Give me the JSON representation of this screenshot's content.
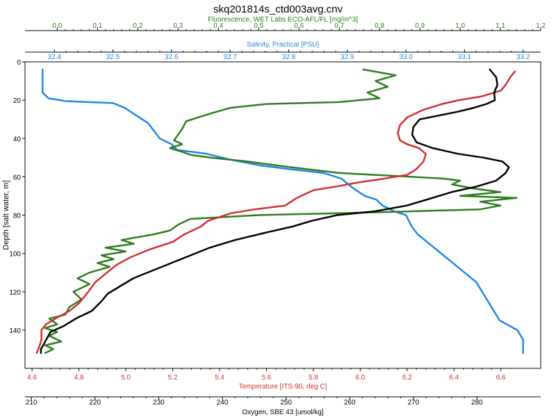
{
  "chart_data": {
    "type": "line",
    "title": "skq201814s_ctd003avg.cnv",
    "ylabel": "Depth [salt water, m]",
    "ylim": [
      0,
      160
    ],
    "yinverted": true,
    "yticks": [
      0,
      20,
      40,
      60,
      80,
      100,
      120,
      140
    ],
    "grid": false,
    "axes": [
      {
        "id": "fluorescence",
        "position": "top-outer",
        "label": "Fluorescence, WET Labs ECO-AFL/FL [mg/m^3]",
        "color": "#2e7d1f",
        "range": [
          -0.08,
          1.2
        ],
        "ticks": [
          0.0,
          0.1,
          0.2,
          0.3,
          0.4,
          0.5,
          0.6,
          0.7,
          0.8,
          0.9,
          1.0,
          1.1,
          1.2
        ],
        "tick_labels": [
          "0.0",
          "0.1",
          "0.2",
          "0.3",
          "0.4",
          "0.5",
          "0.6",
          "0.7",
          "0.8",
          "0.9",
          "1.0",
          "1.1",
          "1.2"
        ]
      },
      {
        "id": "salinity",
        "position": "top-inner",
        "label": "Salinity, Practical [PSU]",
        "color": "#1e88e5",
        "range": [
          32.35,
          33.23
        ],
        "ticks": [
          32.4,
          32.5,
          32.6,
          32.7,
          32.8,
          32.9,
          33.0,
          33.1,
          33.2
        ],
        "tick_labels": [
          "32.4",
          "32.5",
          "32.6",
          "32.7",
          "32.8",
          "32.9",
          "33.0",
          "33.1",
          "33.2"
        ]
      },
      {
        "id": "temperature",
        "position": "bottom-inner",
        "label": "Temperature [ITS-90, deg C]",
        "color": "#d32f2f",
        "range": [
          4.57,
          6.77
        ],
        "ticks": [
          4.6,
          4.8,
          5.0,
          5.2,
          5.4,
          5.6,
          5.8,
          6.0,
          6.2,
          6.4,
          6.6
        ],
        "tick_labels": [
          "4.6",
          "4.8",
          "5.0",
          "5.2",
          "5.4",
          "5.6",
          "5.8",
          "6.0",
          "6.2",
          "6.4",
          "6.6"
        ]
      },
      {
        "id": "oxygen",
        "position": "bottom-outer",
        "label": "Oxygen, SBE 43 [umol/kg]",
        "color": "#000000",
        "range": [
          209,
          290
        ],
        "ticks": [
          210,
          220,
          230,
          240,
          250,
          260,
          270,
          280
        ],
        "tick_labels": [
          "210",
          "220",
          "230",
          "240",
          "250",
          "260",
          "270",
          "280"
        ]
      }
    ],
    "series": [
      {
        "axis": "salinity",
        "color": "#1e88e5",
        "points": [
          [
            32.38,
            4
          ],
          [
            32.38,
            8
          ],
          [
            32.38,
            12
          ],
          [
            32.38,
            16
          ],
          [
            32.39,
            19
          ],
          [
            32.42,
            20.5
          ],
          [
            32.5,
            21.5
          ],
          [
            32.52,
            24
          ],
          [
            32.54,
            28
          ],
          [
            32.56,
            32
          ],
          [
            32.57,
            36
          ],
          [
            32.58,
            40
          ],
          [
            32.6,
            43
          ],
          [
            32.61,
            46
          ],
          [
            32.66,
            48
          ],
          [
            32.7,
            51
          ],
          [
            32.75,
            54
          ],
          [
            32.8,
            56
          ],
          [
            32.86,
            58
          ],
          [
            32.89,
            61
          ],
          [
            32.91,
            66
          ],
          [
            32.93,
            70
          ],
          [
            32.95,
            72
          ],
          [
            32.96,
            75
          ],
          [
            32.98,
            78
          ],
          [
            33.0,
            80
          ],
          [
            33.01,
            86
          ],
          [
            33.02,
            90
          ],
          [
            33.04,
            95
          ],
          [
            33.06,
            100
          ],
          [
            33.08,
            105
          ],
          [
            33.1,
            110
          ],
          [
            33.12,
            115
          ],
          [
            33.13,
            120
          ],
          [
            33.14,
            125
          ],
          [
            33.15,
            130
          ],
          [
            33.16,
            135
          ],
          [
            33.19,
            140
          ],
          [
            33.2,
            145
          ],
          [
            33.2,
            150
          ],
          [
            33.2,
            152
          ]
        ]
      },
      {
        "axis": "fluorescence",
        "color": "#2e7d1f",
        "points": [
          [
            0.76,
            4
          ],
          [
            0.84,
            7
          ],
          [
            0.79,
            10
          ],
          [
            0.82,
            13
          ],
          [
            0.77,
            16
          ],
          [
            0.8,
            19
          ],
          [
            0.7,
            21
          ],
          [
            0.52,
            22
          ],
          [
            0.43,
            24
          ],
          [
            0.38,
            27
          ],
          [
            0.32,
            31
          ],
          [
            0.31,
            35
          ],
          [
            0.3,
            38
          ],
          [
            0.29,
            41
          ],
          [
            0.31,
            43
          ],
          [
            0.28,
            45
          ],
          [
            0.31,
            47
          ],
          [
            0.33,
            48.5
          ],
          [
            0.38,
            50
          ],
          [
            0.47,
            52
          ],
          [
            0.58,
            55
          ],
          [
            0.7,
            58
          ],
          [
            0.88,
            60
          ],
          [
            0.96,
            61
          ],
          [
            1.0,
            62
          ],
          [
            0.98,
            64
          ],
          [
            1.03,
            66
          ],
          [
            1.1,
            68
          ],
          [
            1.0,
            70
          ],
          [
            1.14,
            71
          ],
          [
            1.05,
            73
          ],
          [
            1.1,
            75
          ],
          [
            1.05,
            77
          ],
          [
            0.8,
            78.5
          ],
          [
            0.5,
            80
          ],
          [
            0.33,
            82
          ],
          [
            0.3,
            85
          ],
          [
            0.28,
            88
          ],
          [
            0.24,
            90
          ],
          [
            0.16,
            93
          ],
          [
            0.19,
            95
          ],
          [
            0.12,
            97
          ],
          [
            0.17,
            99
          ],
          [
            0.11,
            101
          ],
          [
            0.14,
            103
          ],
          [
            0.1,
            105
          ],
          [
            0.13,
            107
          ],
          [
            0.08,
            110
          ],
          [
            0.05,
            113
          ],
          [
            0.08,
            116
          ],
          [
            0.04,
            120
          ],
          [
            0.06,
            124
          ],
          [
            0.03,
            128
          ],
          [
            0.02,
            132
          ],
          [
            -0.02,
            134
          ],
          [
            0.0,
            137
          ],
          [
            -0.03,
            139
          ],
          [
            0.0,
            141
          ],
          [
            -0.02,
            143
          ],
          [
            0.01,
            146
          ],
          [
            -0.03,
            148
          ],
          [
            -0.01,
            150
          ],
          [
            -0.03,
            152
          ]
        ]
      },
      {
        "axis": "temperature",
        "color": "#d32f2f",
        "points": [
          [
            6.66,
            5
          ],
          [
            6.64,
            8
          ],
          [
            6.62,
            12
          ],
          [
            6.6,
            15
          ],
          [
            6.52,
            18
          ],
          [
            6.42,
            20
          ],
          [
            6.35,
            22
          ],
          [
            6.27,
            25
          ],
          [
            6.2,
            29
          ],
          [
            6.17,
            33
          ],
          [
            6.16,
            37
          ],
          [
            6.17,
            41
          ],
          [
            6.2,
            43
          ],
          [
            6.25,
            45
          ],
          [
            6.28,
            48
          ],
          [
            6.27,
            52
          ],
          [
            6.24,
            56
          ],
          [
            6.2,
            59
          ],
          [
            6.1,
            61
          ],
          [
            5.99,
            63
          ],
          [
            5.9,
            65
          ],
          [
            5.8,
            67
          ],
          [
            5.73,
            71
          ],
          [
            5.68,
            75
          ],
          [
            5.55,
            77
          ],
          [
            5.45,
            79
          ],
          [
            5.35,
            83
          ],
          [
            5.32,
            86
          ],
          [
            5.25,
            90
          ],
          [
            5.2,
            94
          ],
          [
            5.1,
            98
          ],
          [
            5.02,
            102
          ],
          [
            4.96,
            106
          ],
          [
            4.92,
            110
          ],
          [
            4.87,
            115
          ],
          [
            4.84,
            120
          ],
          [
            4.8,
            126
          ],
          [
            4.76,
            130
          ],
          [
            4.7,
            134
          ],
          [
            4.66,
            137
          ],
          [
            4.64,
            140
          ],
          [
            4.64,
            145
          ],
          [
            4.63,
            149
          ],
          [
            4.62,
            152
          ]
        ]
      },
      {
        "axis": "oxygen",
        "color": "#000000",
        "points": [
          [
            282,
            4
          ],
          [
            283,
            8
          ],
          [
            283.2,
            12
          ],
          [
            282.7,
            16
          ],
          [
            282.8,
            20
          ],
          [
            281.5,
            22
          ],
          [
            279.5,
            24
          ],
          [
            277,
            26
          ],
          [
            274,
            28
          ],
          [
            271,
            30
          ],
          [
            270,
            34
          ],
          [
            269.8,
            38
          ],
          [
            270.5,
            42
          ],
          [
            273,
            45
          ],
          [
            277,
            48
          ],
          [
            281,
            50
          ],
          [
            284,
            52
          ],
          [
            285,
            55
          ],
          [
            284.5,
            58
          ],
          [
            283,
            62
          ],
          [
            280,
            65
          ],
          [
            276,
            68
          ],
          [
            272,
            72
          ],
          [
            269,
            75
          ],
          [
            264,
            78
          ],
          [
            258,
            80
          ],
          [
            254,
            83
          ],
          [
            251,
            86
          ],
          [
            247,
            89
          ],
          [
            242,
            93
          ],
          [
            238,
            97
          ],
          [
            235,
            101
          ],
          [
            232,
            105
          ],
          [
            229,
            109
          ],
          [
            226,
            113
          ],
          [
            224,
            117
          ],
          [
            222,
            121
          ],
          [
            221,
            125
          ],
          [
            219.5,
            130
          ],
          [
            217,
            134
          ],
          [
            215,
            138
          ],
          [
            213,
            141
          ],
          [
            212.5,
            144
          ],
          [
            212,
            147
          ],
          [
            211.5,
            150
          ],
          [
            211.5,
            152
          ]
        ]
      }
    ]
  }
}
